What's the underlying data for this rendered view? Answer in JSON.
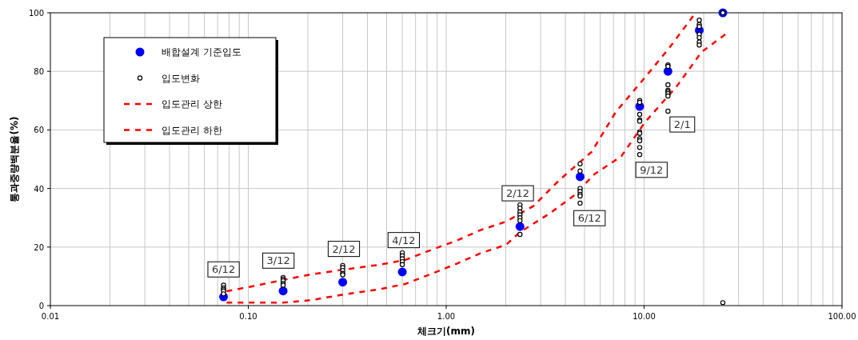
{
  "chart_data": {
    "type": "scatter",
    "xlabel": "체크기(mm)",
    "ylabel": "통과중량백분율(%)",
    "log": "x",
    "grid": true,
    "legend": "top left",
    "xlim": [
      0.01,
      100
    ],
    "xticks": [
      {
        "value": 0.01,
        "label": "0.01"
      },
      {
        "value": 0.1,
        "label": "0.10"
      },
      {
        "value": 1,
        "label": "1.00"
      },
      {
        "value": 10,
        "label": "10.00"
      },
      {
        "value": 100,
        "label": "100.00"
      }
    ],
    "ylim": [
      0,
      100
    ],
    "yticks": [
      0,
      20,
      40,
      60,
      80,
      100
    ],
    "series": [
      {
        "name": "배합설계 기준입도",
        "type": "scatter",
        "marker": "circle",
        "color": "#0000ff",
        "x": [
          0.075,
          0.15,
          0.3,
          0.6,
          2.36,
          4.75,
          9.5,
          13.2,
          19,
          25
        ],
        "values": [
          3,
          5,
          8,
          11.5,
          27,
          44,
          68,
          80,
          94,
          100
        ]
      },
      {
        "name": "입도변화",
        "type": "scatter",
        "marker": "circle",
        "color": "#000000",
        "x": [
          0.075,
          0.075,
          0.075,
          0.075,
          0.075,
          0.15,
          0.15,
          0.15,
          0.15,
          0.15,
          0.3,
          0.3,
          0.3,
          0.3,
          0.3,
          0.6,
          0.6,
          0.6,
          0.6,
          0.6,
          2.36,
          2.36,
          2.36,
          2.36,
          2.36,
          2.36,
          2.36,
          4.75,
          4.75,
          4.75,
          4.75,
          4.75,
          4.75,
          4.75,
          9.5,
          9.5,
          9.5,
          9.5,
          9.5,
          9.5,
          9.5,
          9.5,
          9.5,
          9.5,
          9.5,
          13.2,
          13.2,
          13.2,
          13.2,
          13.2,
          13.2,
          13.2,
          13.2,
          19,
          19,
          19,
          19,
          19,
          19,
          19,
          25,
          25
        ],
        "values": [
          7,
          6,
          5.5,
          5,
          4,
          9.6,
          9,
          8.5,
          7.5,
          7,
          13.7,
          13,
          12,
          11,
          10.5,
          18,
          17,
          16,
          15,
          14,
          34.4,
          33.3,
          32,
          31,
          30,
          29,
          24.3,
          48.4,
          46,
          40,
          39,
          38,
          37.4,
          35,
          70,
          69.4,
          65.3,
          63.4,
          63,
          59.3,
          58.8,
          57,
          56.3,
          54,
          51.6,
          82.2,
          81.7,
          75.4,
          73.5,
          73,
          72.4,
          71.6,
          66.4,
          97.5,
          96,
          95.3,
          92.6,
          91.5,
          90,
          89,
          100,
          1
        ]
      },
      {
        "name": "입도관리 상한",
        "type": "line",
        "marker": "none",
        "line_style": "dashed",
        "color": "#ff0000",
        "x": [
          0.0777,
          0.109,
          0.1485,
          0.209,
          0.304,
          0.454,
          0.622,
          0.846,
          1.12,
          1.48,
          2.01,
          2.76,
          3.75,
          5.43,
          7.19,
          10.1,
          13.4,
          17.7
        ],
        "values": [
          4.9,
          6.8,
          8.7,
          10.7,
          12.3,
          13.9,
          15.6,
          19.1,
          22.1,
          25.7,
          28.7,
          34,
          43,
          52.5,
          66.1,
          77.9,
          88,
          98.9
        ]
      },
      {
        "name": "입도관리 하한",
        "type": "line",
        "marker": "none",
        "line_style": "dashed",
        "color": "#ff0000",
        "x": [
          0.0777,
          0.15,
          0.209,
          0.304,
          0.454,
          0.622,
          0.846,
          1.12,
          1.48,
          2.01,
          2.35,
          3.32,
          4.39,
          5.59,
          7.67,
          10.1,
          14.7,
          19.5,
          25.7
        ],
        "values": [
          1,
          1,
          1.9,
          3.8,
          5.5,
          7.4,
          10.9,
          14.2,
          17.8,
          20.8,
          25,
          31.4,
          37.4,
          44.8,
          51,
          62.6,
          75.1,
          86.6,
          92.6
        ]
      }
    ],
    "annotations": [
      {
        "text": "6/12",
        "x": 0.075,
        "y": 12.5
      },
      {
        "text": "3/12",
        "x": 0.142,
        "y": 15.5
      },
      {
        "text": "2/12",
        "x": 0.304,
        "y": 19.5
      },
      {
        "text": "4/12",
        "x": 0.61,
        "y": 22.5
      },
      {
        "text": "2/12",
        "x": 2.3,
        "y": 38.5
      },
      {
        "text": "6/12",
        "x": 5.3,
        "y": 30
      },
      {
        "text": "9/12",
        "x": 10.9,
        "y": 46.5
      },
      {
        "text": "2/1",
        "x": 15.6,
        "y": 62
      }
    ]
  }
}
